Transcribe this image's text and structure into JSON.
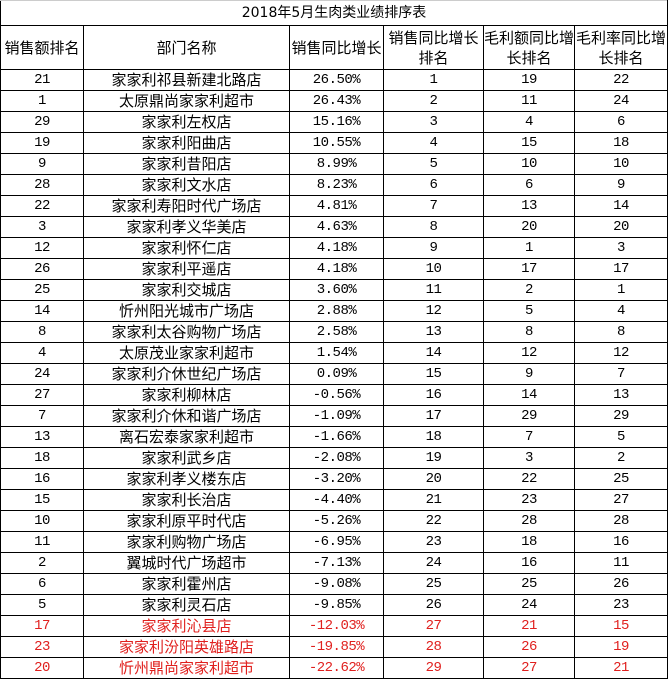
{
  "title": "2018年5月生肉类业绩排序表",
  "headers": [
    "销售额排名",
    "部门名称",
    "销售同比增长",
    "销售同比增长排名",
    "毛利额同比增长排名",
    "毛利率同比增长排名"
  ],
  "highlight_color": "#e0201e",
  "rows": [
    {
      "rank": "21",
      "name": "家家利祁县新建北路店",
      "growth": "26.50%",
      "growth_rank": "1",
      "gp_rank": "19",
      "gm_rank": "22",
      "highlight": false
    },
    {
      "rank": "1",
      "name": "太原鼎尚家家利超市",
      "growth": "26.43%",
      "growth_rank": "2",
      "gp_rank": "11",
      "gm_rank": "24",
      "highlight": false
    },
    {
      "rank": "29",
      "name": "家家利左权店",
      "growth": "15.16%",
      "growth_rank": "3",
      "gp_rank": "4",
      "gm_rank": "6",
      "highlight": false
    },
    {
      "rank": "19",
      "name": "家家利阳曲店",
      "growth": "10.55%",
      "growth_rank": "4",
      "gp_rank": "15",
      "gm_rank": "18",
      "highlight": false
    },
    {
      "rank": "9",
      "name": "家家利昔阳店",
      "growth": "8.99%",
      "growth_rank": "5",
      "gp_rank": "10",
      "gm_rank": "10",
      "highlight": false
    },
    {
      "rank": "28",
      "name": "家家利文水店",
      "growth": "8.23%",
      "growth_rank": "6",
      "gp_rank": "6",
      "gm_rank": "9",
      "highlight": false
    },
    {
      "rank": "22",
      "name": "家家利寿阳时代广场店",
      "growth": "4.81%",
      "growth_rank": "7",
      "gp_rank": "13",
      "gm_rank": "14",
      "highlight": false
    },
    {
      "rank": "3",
      "name": "家家利孝义华美店",
      "growth": "4.63%",
      "growth_rank": "8",
      "gp_rank": "20",
      "gm_rank": "20",
      "highlight": false
    },
    {
      "rank": "12",
      "name": "家家利怀仁店",
      "growth": "4.18%",
      "growth_rank": "9",
      "gp_rank": "1",
      "gm_rank": "3",
      "highlight": false
    },
    {
      "rank": "26",
      "name": "家家利平遥店",
      "growth": "4.18%",
      "growth_rank": "10",
      "gp_rank": "17",
      "gm_rank": "17",
      "highlight": false
    },
    {
      "rank": "25",
      "name": "家家利交城店",
      "growth": "3.60%",
      "growth_rank": "11",
      "gp_rank": "2",
      "gm_rank": "1",
      "highlight": false
    },
    {
      "rank": "14",
      "name": "忻州阳光城市广场店",
      "growth": "2.88%",
      "growth_rank": "12",
      "gp_rank": "5",
      "gm_rank": "4",
      "highlight": false
    },
    {
      "rank": "8",
      "name": "家家利太谷购物广场店",
      "growth": "2.58%",
      "growth_rank": "13",
      "gp_rank": "8",
      "gm_rank": "8",
      "highlight": false
    },
    {
      "rank": "4",
      "name": "太原茂业家家利超市",
      "growth": "1.54%",
      "growth_rank": "14",
      "gp_rank": "12",
      "gm_rank": "12",
      "highlight": false
    },
    {
      "rank": "24",
      "name": "家家利介休世纪广场店",
      "growth": "0.09%",
      "growth_rank": "15",
      "gp_rank": "9",
      "gm_rank": "7",
      "highlight": false
    },
    {
      "rank": "27",
      "name": "家家利柳林店",
      "growth": "-0.56%",
      "growth_rank": "16",
      "gp_rank": "14",
      "gm_rank": "13",
      "highlight": false
    },
    {
      "rank": "7",
      "name": "家家利介休和谐广场店",
      "growth": "-1.09%",
      "growth_rank": "17",
      "gp_rank": "29",
      "gm_rank": "29",
      "highlight": false
    },
    {
      "rank": "13",
      "name": "离石宏泰家家利超市",
      "growth": "-1.66%",
      "growth_rank": "18",
      "gp_rank": "7",
      "gm_rank": "5",
      "highlight": false
    },
    {
      "rank": "18",
      "name": "家家利武乡店",
      "growth": "-2.08%",
      "growth_rank": "19",
      "gp_rank": "3",
      "gm_rank": "2",
      "highlight": false
    },
    {
      "rank": "16",
      "name": "家家利孝义楼东店",
      "growth": "-3.20%",
      "growth_rank": "20",
      "gp_rank": "22",
      "gm_rank": "25",
      "highlight": false
    },
    {
      "rank": "15",
      "name": "家家利长治店",
      "growth": "-4.40%",
      "growth_rank": "21",
      "gp_rank": "23",
      "gm_rank": "27",
      "highlight": false
    },
    {
      "rank": "10",
      "name": "家家利原平时代店",
      "growth": "-5.26%",
      "growth_rank": "22",
      "gp_rank": "28",
      "gm_rank": "28",
      "highlight": false
    },
    {
      "rank": "11",
      "name": "家家利购物广场店",
      "growth": "-6.95%",
      "growth_rank": "23",
      "gp_rank": "18",
      "gm_rank": "16",
      "highlight": false
    },
    {
      "rank": "2",
      "name": "翼城时代广场超市",
      "growth": "-7.13%",
      "growth_rank": "24",
      "gp_rank": "16",
      "gm_rank": "11",
      "highlight": false
    },
    {
      "rank": "6",
      "name": "家家利霍州店",
      "growth": "-9.08%",
      "growth_rank": "25",
      "gp_rank": "25",
      "gm_rank": "26",
      "highlight": false
    },
    {
      "rank": "5",
      "name": "家家利灵石店",
      "growth": "-9.85%",
      "growth_rank": "26",
      "gp_rank": "24",
      "gm_rank": "23",
      "highlight": false
    },
    {
      "rank": "17",
      "name": "家家利沁县店",
      "growth": "-12.03%",
      "growth_rank": "27",
      "gp_rank": "21",
      "gm_rank": "15",
      "highlight": true
    },
    {
      "rank": "23",
      "name": "家家利汾阳英雄路店",
      "growth": "-19.85%",
      "growth_rank": "28",
      "gp_rank": "26",
      "gm_rank": "19",
      "highlight": true
    },
    {
      "rank": "20",
      "name": "忻州鼎尚家家利超市",
      "growth": "-22.62%",
      "growth_rank": "29",
      "gp_rank": "27",
      "gm_rank": "21",
      "highlight": true
    }
  ]
}
